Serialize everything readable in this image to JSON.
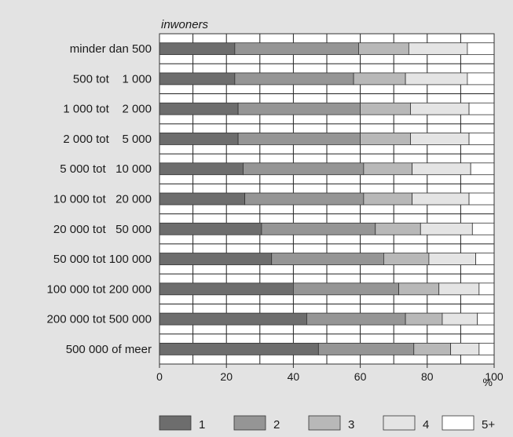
{
  "chart_data": {
    "type": "bar",
    "orientation": "horizontal",
    "stacked": true,
    "title": "inwoners",
    "xlabel": "%",
    "xlim": [
      0,
      100
    ],
    "xticks": [
      "0",
      "20",
      "40",
      "60",
      "80",
      "100"
    ],
    "categories": [
      "minder dan 500",
      "500 tot    1 000",
      "1 000 tot    2 000",
      "2 000 tot    5 000",
      "5 000 tot   10 000",
      "10 000 tot   20 000",
      "20 000 tot   50 000",
      "50 000 tot 100 000",
      "100 000 tot 200 000",
      "200 000 tot 500 000",
      "500 000 of meer"
    ],
    "series": [
      {
        "name": "1",
        "color": "#6d6d6d",
        "values": [
          22.5,
          22.5,
          23.5,
          23.5,
          25,
          25.5,
          30.5,
          33.5,
          40,
          44,
          47.5
        ]
      },
      {
        "name": "2",
        "color": "#959595",
        "values": [
          37,
          35.5,
          36.5,
          36.5,
          36,
          35.5,
          34,
          33.5,
          31.5,
          29.5,
          28.5
        ]
      },
      {
        "name": "3",
        "color": "#b8b8b8",
        "values": [
          15,
          15.5,
          15,
          15,
          14.5,
          14.5,
          13.5,
          13.5,
          12,
          11,
          11
        ]
      },
      {
        "name": "4",
        "color": "#e4e4e4",
        "values": [
          17.5,
          18.5,
          17.5,
          17.5,
          17.5,
          17,
          15.5,
          14,
          12,
          10.5,
          8.5
        ]
      },
      {
        "name": "5+",
        "color": "#ffffff",
        "values": [
          8,
          8,
          7.5,
          7.5,
          7,
          7.5,
          6.5,
          5.5,
          4.5,
          5,
          4.5
        ]
      }
    ],
    "grid": true,
    "legend": "bottom"
  }
}
